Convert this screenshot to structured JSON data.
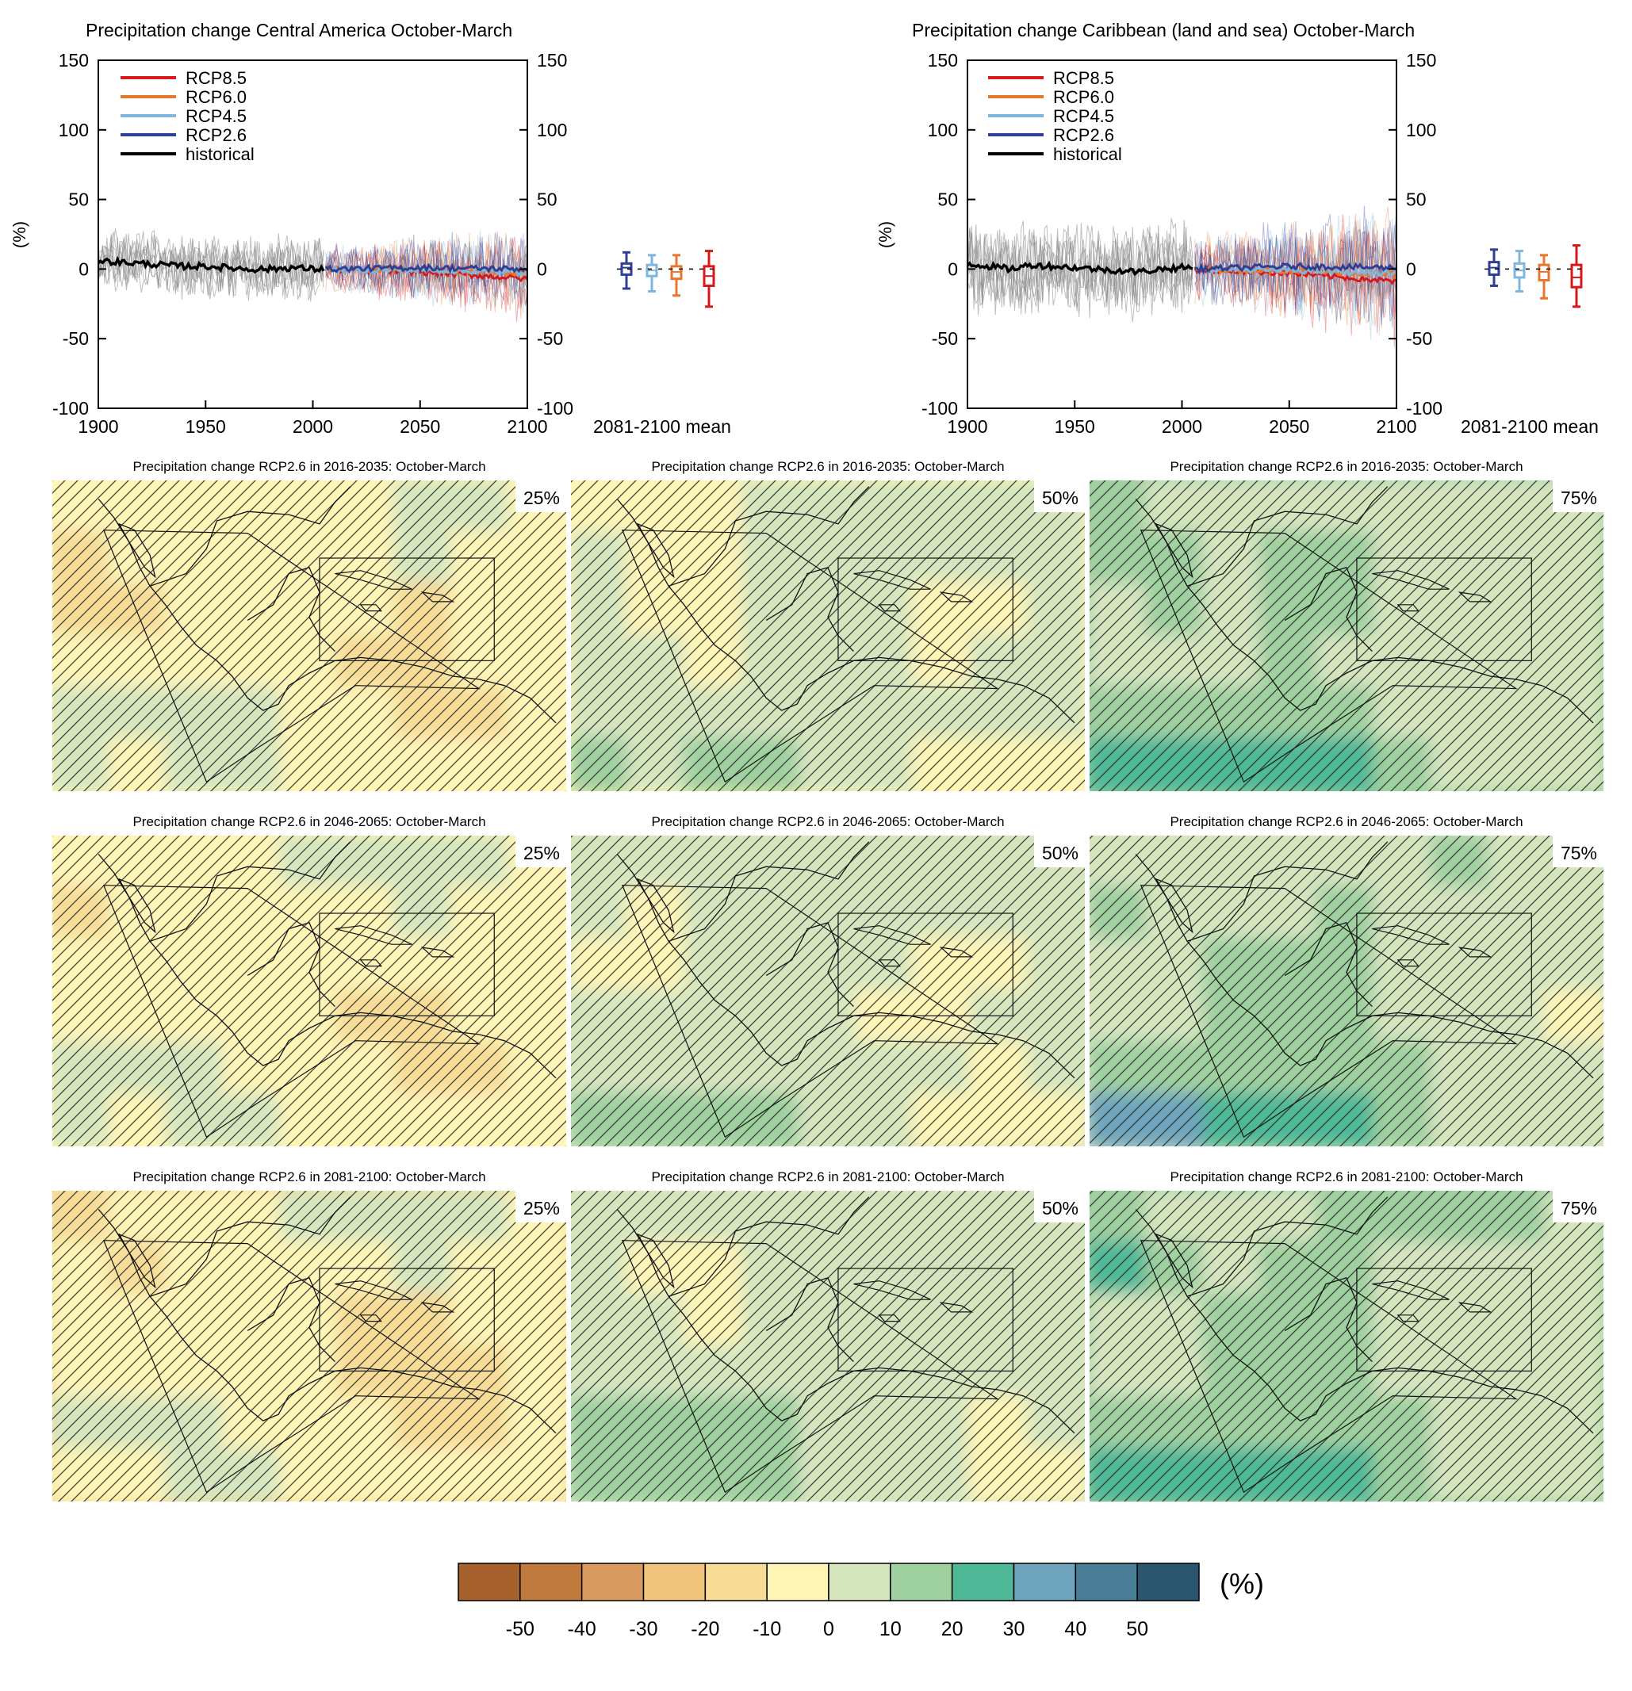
{
  "colors": {
    "rcp85": "#d7191c",
    "rcp60": "#e8772e",
    "rcp45": "#7fb6de",
    "rcp26": "#2f3f95",
    "historical": "#000000",
    "hist_spread": "#8a8a8a",
    "box_default": "#000000"
  },
  "chart_data": [
    {
      "type": "line",
      "title": "Precipitation change Central America October-March",
      "ylabel": "(%)",
      "xlim": [
        1900,
        2100
      ],
      "ylim": [
        -100,
        150
      ],
      "xticks": [
        "1900",
        "1950",
        "2000",
        "2050",
        "2100"
      ],
      "yticks": [
        "150",
        "100",
        "50",
        "0",
        "-50",
        "-100"
      ],
      "right_yticks": [
        "150",
        "100",
        "50",
        "0",
        "-50",
        "-100"
      ],
      "legend": [
        "RCP8.5",
        "RCP6.0",
        "RCP4.5",
        "RCP2.6",
        "historical"
      ],
      "legend_position": "top-left",
      "boxplot_label": "2081-2100 mean",
      "historical_mean": {
        "x": [
          1900,
          1910,
          1920,
          1930,
          1940,
          1950,
          1960,
          1970,
          1980,
          1990,
          2000,
          2005
        ],
        "y": [
          6,
          5,
          4,
          3,
          2,
          2,
          1,
          0,
          0,
          1,
          0,
          0
        ]
      },
      "hist_spread_amplitude": 22,
      "scenario_spread_amplitude": 28,
      "scenario_means": [
        {
          "name": "RCP2.6",
          "x": [
            2006,
            2050,
            2100
          ],
          "y": [
            0,
            1,
            0
          ]
        },
        {
          "name": "RCP4.5",
          "x": [
            2006,
            2050,
            2100
          ],
          "y": [
            0,
            -1,
            -2
          ]
        },
        {
          "name": "RCP6.0",
          "x": [
            2006,
            2050,
            2100
          ],
          "y": [
            0,
            0,
            -3
          ]
        },
        {
          "name": "RCP8.5",
          "x": [
            2006,
            2050,
            2100
          ],
          "y": [
            0,
            -2,
            -7
          ]
        }
      ],
      "boxplots": [
        {
          "name": "RCP2.6",
          "min": -14,
          "q1": -4,
          "median": 1,
          "q3": 4,
          "max": 12
        },
        {
          "name": "RCP4.5",
          "min": -16,
          "q1": -5,
          "median": -1,
          "q3": 3,
          "max": 10
        },
        {
          "name": "RCP6.0",
          "min": -19,
          "q1": -7,
          "median": -2,
          "q3": 2,
          "max": 10
        },
        {
          "name": "RCP8.5",
          "min": -27,
          "q1": -12,
          "median": -5,
          "q3": 2,
          "max": 13
        }
      ]
    },
    {
      "type": "line",
      "title": "Precipitation change Caribbean (land and sea) October-March",
      "ylabel": "(%)",
      "xlim": [
        1900,
        2100
      ],
      "ylim": [
        -100,
        150
      ],
      "xticks": [
        "1900",
        "1950",
        "2000",
        "2050",
        "2100"
      ],
      "yticks": [
        "150",
        "100",
        "50",
        "0",
        "-50",
        "-100"
      ],
      "right_yticks": [
        "150",
        "100",
        "50",
        "0",
        "-50",
        "-100"
      ],
      "legend": [
        "RCP8.5",
        "RCP6.0",
        "RCP4.5",
        "RCP2.6",
        "historical"
      ],
      "legend_position": "top-left",
      "boxplot_label": "2081-2100 mean",
      "historical_mean": {
        "x": [
          1900,
          1910,
          1920,
          1930,
          1940,
          1950,
          1960,
          1970,
          1980,
          1990,
          2000,
          2005
        ],
        "y": [
          4,
          2,
          0,
          3,
          2,
          1,
          0,
          -1,
          -2,
          0,
          1,
          1
        ]
      },
      "hist_spread_amplitude": 32,
      "scenario_spread_amplitude": 40,
      "scenario_means": [
        {
          "name": "RCP2.6",
          "x": [
            2006,
            2050,
            2100
          ],
          "y": [
            0,
            2,
            1
          ]
        },
        {
          "name": "RCP4.5",
          "x": [
            2006,
            2050,
            2100
          ],
          "y": [
            0,
            -1,
            -3
          ]
        },
        {
          "name": "RCP6.0",
          "x": [
            2006,
            2050,
            2100
          ],
          "y": [
            0,
            -1,
            -4
          ]
        },
        {
          "name": "RCP8.5",
          "x": [
            2006,
            2050,
            2100
          ],
          "y": [
            0,
            -3,
            -9
          ]
        }
      ],
      "boxplots": [
        {
          "name": "RCP2.6",
          "min": -12,
          "q1": -4,
          "median": 1,
          "q3": 5,
          "max": 14
        },
        {
          "name": "RCP4.5",
          "min": -16,
          "q1": -6,
          "median": -1,
          "q3": 4,
          "max": 13
        },
        {
          "name": "RCP6.0",
          "min": -21,
          "q1": -8,
          "median": -2,
          "q3": 3,
          "max": 10
        },
        {
          "name": "RCP8.5",
          "min": -27,
          "q1": -13,
          "median": -6,
          "q3": 3,
          "max": 17
        }
      ]
    },
    {
      "type": "heatmap",
      "title": "Precipitation change RCP2.6 in 2016-2035: October-March",
      "percentile_label": "25%",
      "rows": 6,
      "cols": 9,
      "values": [
        [
          -10,
          -10,
          -10,
          -10,
          -10,
          -10,
          10,
          10,
          -10
        ],
        [
          -20,
          -10,
          -10,
          -10,
          -10,
          -10,
          10,
          -10,
          -10
        ],
        [
          -20,
          -20,
          -10,
          -10,
          -10,
          -10,
          -20,
          -10,
          -10
        ],
        [
          -10,
          -10,
          -10,
          -10,
          -10,
          -20,
          -20,
          -10,
          -10
        ],
        [
          10,
          10,
          10,
          10,
          -10,
          -10,
          -20,
          -20,
          -10
        ],
        [
          10,
          -10,
          10,
          10,
          -10,
          -10,
          -10,
          -10,
          -10
        ]
      ]
    },
    {
      "type": "heatmap",
      "title": "Precipitation change RCP2.6 in 2016-2035: October-March",
      "percentile_label": "50%",
      "rows": 6,
      "cols": 9,
      "values": [
        [
          -10,
          -10,
          -10,
          10,
          10,
          10,
          10,
          10,
          10
        ],
        [
          10,
          -10,
          -10,
          10,
          10,
          10,
          10,
          10,
          10
        ],
        [
          10,
          -10,
          -10,
          10,
          10,
          10,
          -10,
          -10,
          10
        ],
        [
          10,
          10,
          -10,
          10,
          10,
          10,
          -10,
          10,
          10
        ],
        [
          10,
          10,
          10,
          10,
          10,
          10,
          10,
          10,
          10
        ],
        [
          20,
          10,
          20,
          20,
          10,
          10,
          -10,
          -10,
          -10
        ]
      ]
    },
    {
      "type": "heatmap",
      "title": "Precipitation change RCP2.6 in 2016-2035: October-March",
      "percentile_label": "75%",
      "rows": 6,
      "cols": 9,
      "values": [
        [
          20,
          10,
          10,
          10,
          10,
          10,
          10,
          10,
          10
        ],
        [
          20,
          20,
          10,
          20,
          20,
          10,
          10,
          10,
          10
        ],
        [
          10,
          20,
          10,
          20,
          20,
          10,
          10,
          10,
          10
        ],
        [
          10,
          10,
          10,
          20,
          10,
          10,
          10,
          10,
          10
        ],
        [
          20,
          20,
          20,
          20,
          20,
          10,
          10,
          10,
          10
        ],
        [
          30,
          30,
          30,
          30,
          30,
          20,
          10,
          10,
          10
        ]
      ]
    },
    {
      "type": "heatmap",
      "title": "Precipitation change RCP2.6 in 2046-2065: October-March",
      "percentile_label": "25%",
      "rows": 6,
      "cols": 9,
      "values": [
        [
          -10,
          -10,
          -10,
          -10,
          10,
          10,
          10,
          10,
          -10
        ],
        [
          -20,
          -10,
          -10,
          -10,
          -10,
          -10,
          10,
          -10,
          -10
        ],
        [
          -10,
          -10,
          -10,
          -10,
          -10,
          -10,
          -10,
          -10,
          -10
        ],
        [
          -10,
          -10,
          -10,
          -10,
          -10,
          -20,
          -20,
          -10,
          -10
        ],
        [
          10,
          10,
          10,
          -10,
          -10,
          -10,
          -20,
          -20,
          -10
        ],
        [
          10,
          -10,
          10,
          10,
          -10,
          -10,
          -10,
          -10,
          -10
        ]
      ]
    },
    {
      "type": "heatmap",
      "title": "Precipitation change RCP2.6 in 2046-2065: October-March",
      "percentile_label": "50%",
      "rows": 6,
      "cols": 9,
      "values": [
        [
          10,
          10,
          10,
          10,
          10,
          10,
          10,
          10,
          10
        ],
        [
          10,
          -10,
          10,
          10,
          10,
          10,
          10,
          10,
          10
        ],
        [
          -10,
          -10,
          10,
          10,
          10,
          10,
          -10,
          -10,
          10
        ],
        [
          10,
          10,
          10,
          10,
          10,
          -10,
          -10,
          10,
          10
        ],
        [
          10,
          10,
          10,
          10,
          10,
          10,
          10,
          -10,
          10
        ],
        [
          20,
          20,
          20,
          20,
          10,
          10,
          -10,
          -10,
          -10
        ]
      ]
    },
    {
      "type": "heatmap",
      "title": "Precipitation change RCP2.6 in 2046-2065: October-March",
      "percentile_label": "75%",
      "rows": 6,
      "cols": 9,
      "values": [
        [
          10,
          10,
          10,
          10,
          10,
          10,
          20,
          10,
          10
        ],
        [
          20,
          10,
          10,
          10,
          20,
          10,
          10,
          10,
          10
        ],
        [
          10,
          10,
          20,
          20,
          20,
          10,
          10,
          10,
          10
        ],
        [
          10,
          10,
          20,
          20,
          20,
          10,
          10,
          10,
          -10
        ],
        [
          20,
          20,
          20,
          20,
          20,
          20,
          10,
          10,
          10
        ],
        [
          40,
          40,
          30,
          30,
          30,
          20,
          10,
          10,
          10
        ]
      ]
    },
    {
      "type": "heatmap",
      "title": "Precipitation change RCP2.6 in 2081-2100: October-March",
      "percentile_label": "25%",
      "rows": 6,
      "cols": 9,
      "values": [
        [
          -20,
          -10,
          -10,
          -10,
          10,
          10,
          10,
          10,
          -10
        ],
        [
          -10,
          -20,
          -10,
          -10,
          -10,
          -10,
          10,
          -10,
          -10
        ],
        [
          -10,
          -10,
          -10,
          -10,
          -10,
          -20,
          -20,
          -10,
          -10
        ],
        [
          -10,
          -10,
          -10,
          -10,
          -10,
          -20,
          -20,
          -20,
          -10
        ],
        [
          10,
          10,
          10,
          -10,
          -10,
          -10,
          -20,
          -20,
          -10
        ],
        [
          -10,
          -10,
          10,
          10,
          -10,
          -10,
          -10,
          -10,
          -10
        ]
      ]
    },
    {
      "type": "heatmap",
      "title": "Precipitation change RCP2.6 in 2081-2100: October-March",
      "percentile_label": "50%",
      "rows": 6,
      "cols": 9,
      "values": [
        [
          10,
          10,
          10,
          10,
          10,
          10,
          10,
          10,
          10
        ],
        [
          10,
          -10,
          -10,
          10,
          10,
          10,
          10,
          10,
          10
        ],
        [
          10,
          10,
          -10,
          10,
          10,
          10,
          10,
          10,
          10
        ],
        [
          10,
          10,
          10,
          10,
          10,
          10,
          10,
          10,
          10
        ],
        [
          20,
          20,
          20,
          20,
          10,
          10,
          10,
          -10,
          10
        ],
        [
          20,
          20,
          20,
          20,
          10,
          10,
          10,
          -10,
          -10
        ]
      ]
    },
    {
      "type": "heatmap",
      "title": "Precipitation change RCP2.6 in 2081-2100: October-March",
      "percentile_label": "75%",
      "rows": 6,
      "cols": 9,
      "values": [
        [
          20,
          10,
          10,
          10,
          20,
          20,
          20,
          20,
          10
        ],
        [
          30,
          20,
          10,
          20,
          20,
          10,
          10,
          10,
          10
        ],
        [
          10,
          10,
          20,
          20,
          20,
          10,
          10,
          10,
          10
        ],
        [
          10,
          10,
          20,
          20,
          20,
          10,
          10,
          10,
          10
        ],
        [
          20,
          20,
          20,
          20,
          20,
          20,
          10,
          10,
          10
        ],
        [
          30,
          30,
          30,
          30,
          30,
          20,
          10,
          10,
          10
        ]
      ]
    }
  ],
  "colorbar": {
    "unit_label": "(%)",
    "ticks": [
      "-50",
      "-40",
      "-30",
      "-20",
      "-10",
      "0",
      "10",
      "20",
      "30",
      "40",
      "50"
    ],
    "colors": [
      "#a6612c",
      "#c17a3d",
      "#d99a60",
      "#f0c47a",
      "#f6dc97",
      "#fef5b7",
      "#d5e6bf",
      "#9fd0a0",
      "#4fb897",
      "#6fa4bd",
      "#4a7d96",
      "#2c5570"
    ]
  }
}
